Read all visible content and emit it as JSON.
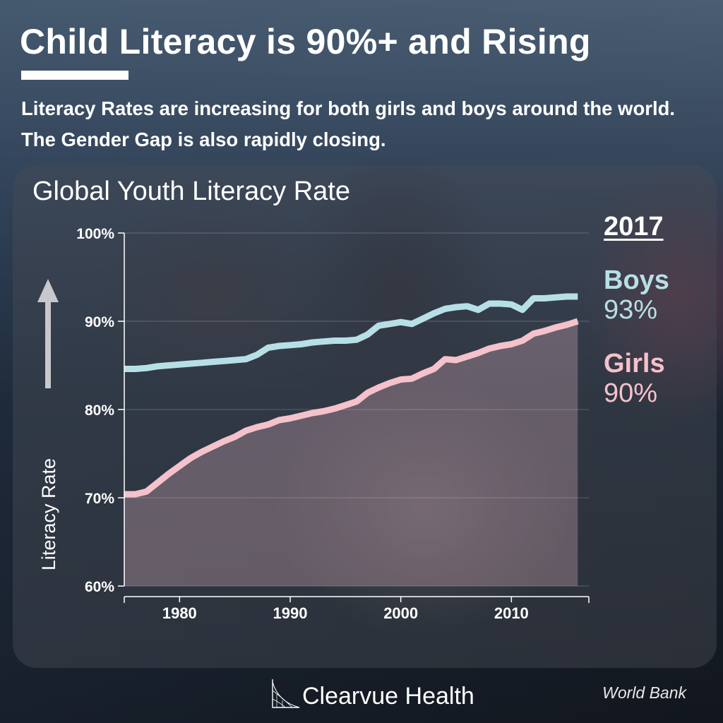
{
  "header": {
    "title": "Child Literacy is 90%+ and Rising",
    "subtitle": "Literacy Rates are increasing for both girls and boys around the world. The Gender Gap is also rapidly closing."
  },
  "chart_panel": {
    "title": "Global Youth Literacy Rate",
    "y_axis_label": "Literacy Rate"
  },
  "legend": {
    "year": "2017",
    "boys_label": "Boys",
    "boys_value": "93%",
    "girls_label": "Girls",
    "girls_value": "90%"
  },
  "footer": {
    "brand": "Clearvue Health",
    "source": "World Bank"
  },
  "colors": {
    "boys": "#b7e0e6",
    "girls": "#f5c1cb",
    "girls_fill": "rgba(245,193,203,0.28)",
    "axis": "#ffffff"
  },
  "chart_data": {
    "type": "line",
    "title": "Global Youth Literacy Rate",
    "xlabel": "",
    "ylabel": "Literacy Rate",
    "ylim": [
      60,
      100
    ],
    "xlim": [
      1975,
      2017
    ],
    "yticks": [
      "60%",
      "70%",
      "80%",
      "90%",
      "100%"
    ],
    "xticks": [
      "1980",
      "1990",
      "2000",
      "2010"
    ],
    "grid": true,
    "legend_position": "right",
    "x": [
      1975,
      1976,
      1977,
      1978,
      1979,
      1980,
      1981,
      1982,
      1983,
      1984,
      1985,
      1986,
      1987,
      1988,
      1989,
      1990,
      1991,
      1992,
      1993,
      1994,
      1995,
      1996,
      1997,
      1998,
      1999,
      2000,
      2001,
      2002,
      2003,
      2004,
      2005,
      2006,
      2007,
      2008,
      2009,
      2010,
      2011,
      2012,
      2013,
      2014,
      2015,
      2016
    ],
    "series": [
      {
        "name": "Boys",
        "values": [
          84.6,
          84.6,
          84.7,
          84.9,
          85.0,
          85.1,
          85.2,
          85.3,
          85.4,
          85.5,
          85.6,
          85.7,
          86.2,
          87.0,
          87.2,
          87.3,
          87.4,
          87.6,
          87.7,
          87.8,
          87.8,
          87.9,
          88.5,
          89.5,
          89.7,
          89.9,
          89.7,
          90.3,
          90.9,
          91.4,
          91.6,
          91.7,
          91.3,
          92.0,
          92.0,
          91.9,
          91.3,
          92.6,
          92.6,
          92.7,
          92.8,
          92.8
        ]
      },
      {
        "name": "Girls",
        "values": [
          70.4,
          70.4,
          70.7,
          71.7,
          72.7,
          73.6,
          74.5,
          75.2,
          75.8,
          76.4,
          76.9,
          77.6,
          78.0,
          78.3,
          78.8,
          79.0,
          79.3,
          79.6,
          79.8,
          80.1,
          80.5,
          80.9,
          81.9,
          82.5,
          83.0,
          83.4,
          83.5,
          84.1,
          84.6,
          85.7,
          85.6,
          86.0,
          86.4,
          86.9,
          87.2,
          87.4,
          87.8,
          88.6,
          88.9,
          89.3,
          89.6,
          90.0
        ]
      }
    ],
    "annotations": [
      "2017",
      "Boys 93%",
      "Girls 90%"
    ]
  }
}
